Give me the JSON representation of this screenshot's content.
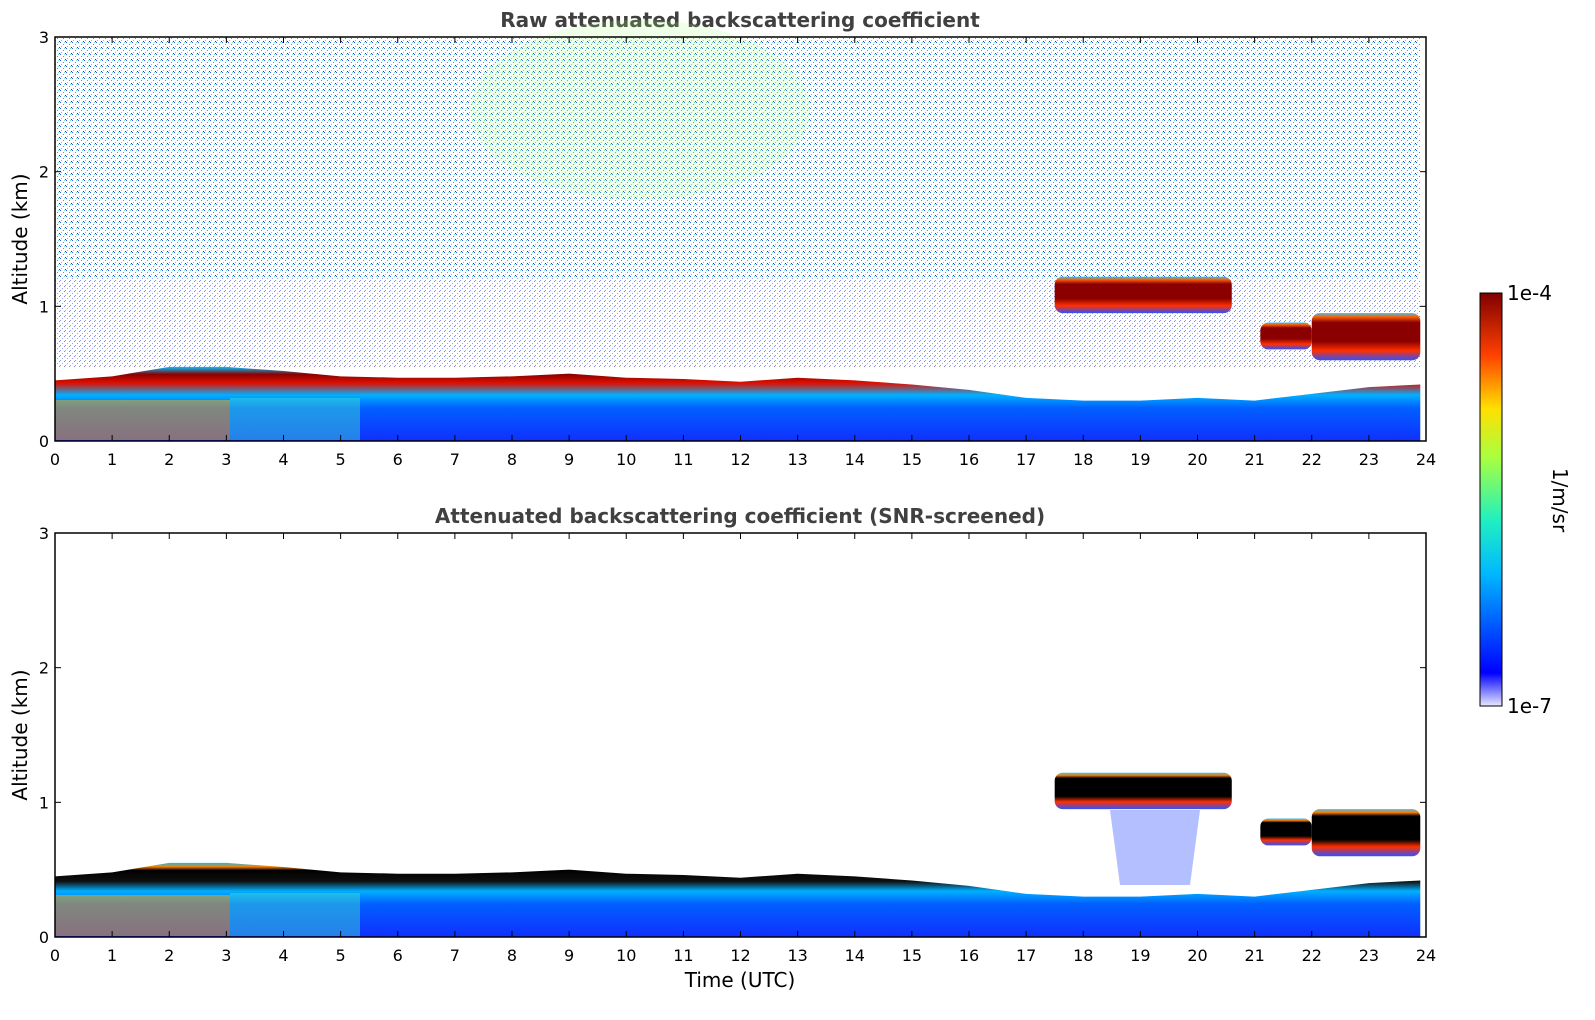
{
  "chart_data": [
    {
      "type": "heatmap",
      "title": "Raw attenuated backscattering coefficient",
      "xlabel": "",
      "ylabel": "Altitude (km)",
      "xlim": [
        0,
        24
      ],
      "ylim": [
        0,
        3
      ],
      "xticks": [
        0,
        1,
        2,
        3,
        4,
        5,
        6,
        7,
        8,
        9,
        10,
        11,
        12,
        13,
        14,
        15,
        16,
        17,
        18,
        19,
        20,
        21,
        22,
        23,
        24
      ],
      "yticks": [
        0,
        1,
        2,
        3
      ],
      "colormap": "jet",
      "boundary_layer_top_km": [
        {
          "t": 0,
          "z": 0.45
        },
        {
          "t": 1,
          "z": 0.48
        },
        {
          "t": 2,
          "z": 0.55
        },
        {
          "t": 3,
          "z": 0.55
        },
        {
          "t": 4,
          "z": 0.52
        },
        {
          "t": 5,
          "z": 0.48
        },
        {
          "t": 6,
          "z": 0.47
        },
        {
          "t": 7,
          "z": 0.47
        },
        {
          "t": 8,
          "z": 0.48
        },
        {
          "t": 9,
          "z": 0.5
        },
        {
          "t": 10,
          "z": 0.47
        },
        {
          "t": 11,
          "z": 0.46
        },
        {
          "t": 12,
          "z": 0.44
        },
        {
          "t": 13,
          "z": 0.47
        },
        {
          "t": 14,
          "z": 0.45
        },
        {
          "t": 15,
          "z": 0.42
        },
        {
          "t": 16,
          "z": 0.38
        },
        {
          "t": 17,
          "z": 0.32
        },
        {
          "t": 18,
          "z": 0.3
        },
        {
          "t": 19,
          "z": 0.3
        },
        {
          "t": 20,
          "z": 0.32
        },
        {
          "t": 21,
          "z": 0.3
        },
        {
          "t": 22,
          "z": 0.35
        },
        {
          "t": 23,
          "z": 0.4
        },
        {
          "t": 24,
          "z": 0.42
        }
      ],
      "cloud_layers_km": [
        {
          "t_start": 17.5,
          "t_end": 20.6,
          "z_bottom": 0.95,
          "z_top": 1.22
        },
        {
          "t_start": 21.1,
          "t_end": 22.0,
          "z_bottom": 0.68,
          "z_top": 0.88
        },
        {
          "t_start": 22.0,
          "t_end": 23.9,
          "z_bottom": 0.6,
          "z_top": 0.95
        }
      ]
    },
    {
      "type": "heatmap",
      "title": "Attenuated backscattering coefficient (SNR-screened)",
      "xlabel": "Time (UTC)",
      "ylabel": "Altitude (km)",
      "xlim": [
        0,
        24
      ],
      "ylim": [
        0,
        3
      ],
      "xticks": [
        0,
        1,
        2,
        3,
        4,
        5,
        6,
        7,
        8,
        9,
        10,
        11,
        12,
        13,
        14,
        15,
        16,
        17,
        18,
        19,
        20,
        21,
        22,
        23,
        24
      ],
      "yticks": [
        0,
        1,
        2,
        3
      ],
      "colormap": "jet"
    }
  ],
  "colorbar": {
    "label": "1/m/sr",
    "min_label": "1e-7",
    "max_label": "1e-4",
    "scale": "log",
    "range": [
      1e-07,
      0.0001
    ]
  }
}
